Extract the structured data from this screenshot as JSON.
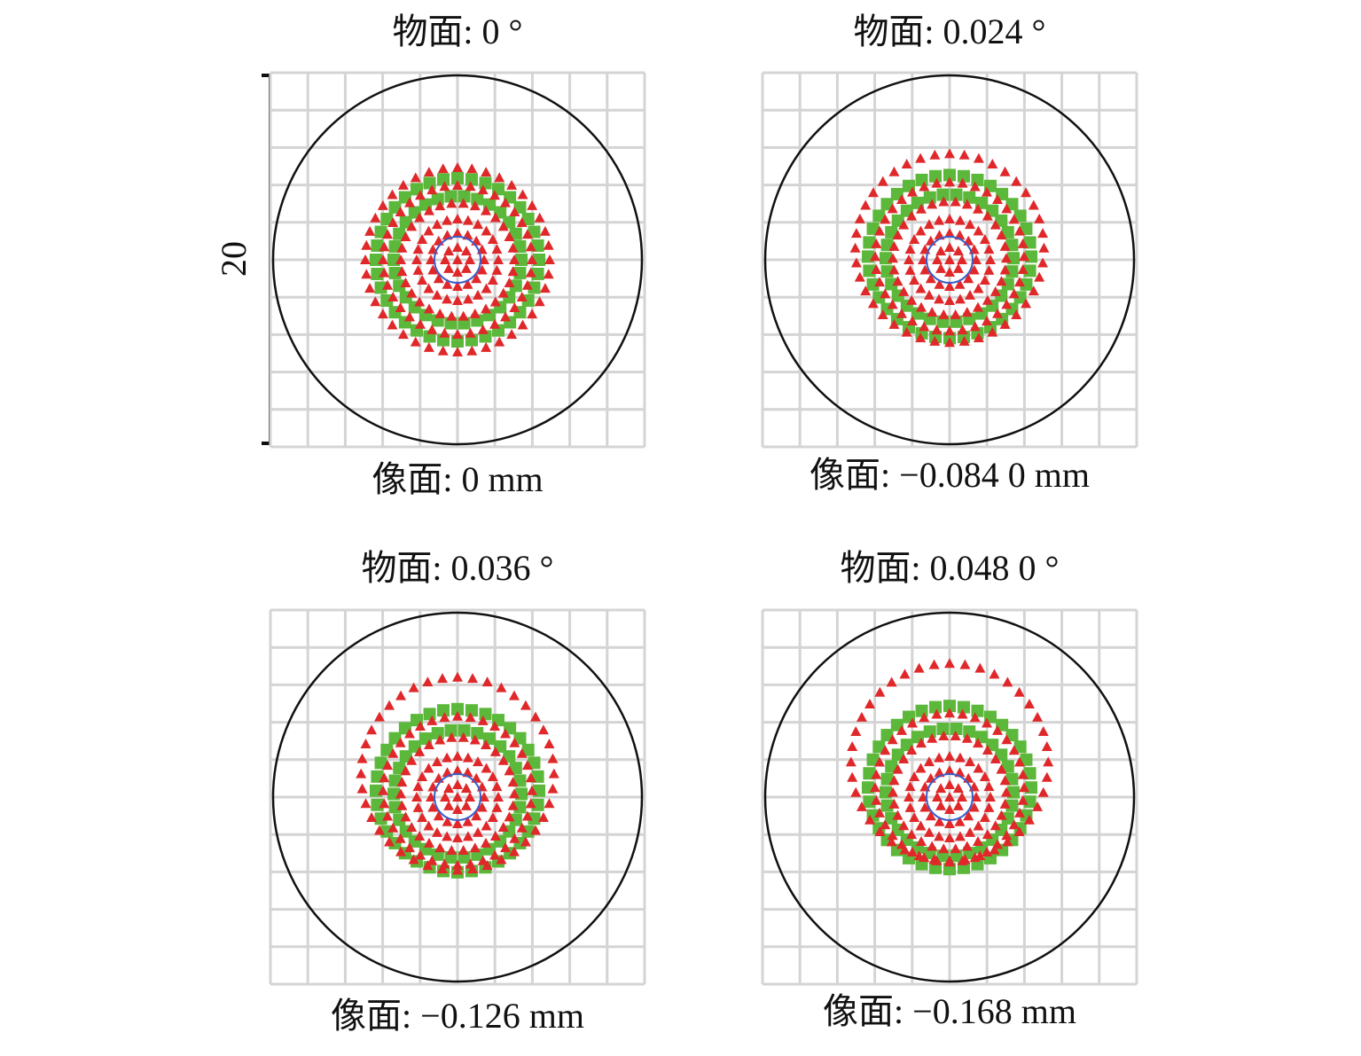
{
  "scale_label": "20",
  "panels": [
    {
      "object_label": "物面: 0 °",
      "image_label": "像面: 0 mm"
    },
    {
      "object_label": "物面: 0.024 °",
      "image_label": "像面: −0.084 0 mm"
    },
    {
      "object_label": "物面: 0.036 °",
      "image_label": "像面: −0.126 mm"
    },
    {
      "object_label": "物面: 0.048 0 °",
      "image_label": "像面: −0.168 mm"
    }
  ]
}
